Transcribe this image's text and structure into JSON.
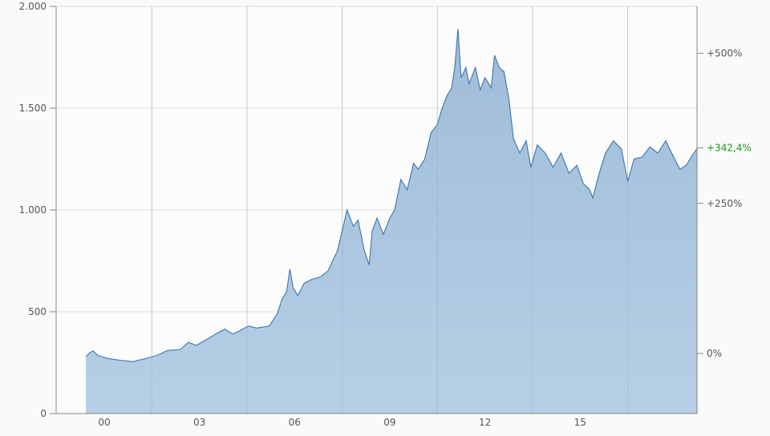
{
  "chart_data": {
    "type": "area",
    "title": "",
    "xlabel": "",
    "ylabel": "",
    "xlim": [
      1999.4,
      2018.7
    ],
    "ylim": [
      0,
      2000
    ],
    "grid": true,
    "x_ticks": [
      {
        "value": 2000,
        "label": "00"
      },
      {
        "value": 2003,
        "label": "03"
      },
      {
        "value": 2006,
        "label": "06"
      },
      {
        "value": 2009,
        "label": "09"
      },
      {
        "value": 2012,
        "label": "12"
      },
      {
        "value": 2015,
        "label": "15"
      }
    ],
    "x_gridlines": [
      2001.5,
      2004.5,
      2007.5,
      2010.5,
      2013.5,
      2016.5
    ],
    "y_ticks": [
      {
        "value": 0,
        "label": "0"
      },
      {
        "value": 500,
        "label": "500"
      },
      {
        "value": 1000,
        "label": "1.000"
      },
      {
        "value": 1500,
        "label": "1.500"
      },
      {
        "value": 2000,
        "label": "2.000"
      }
    ],
    "y2_ticks": [
      {
        "value": 0,
        "label": "0%"
      },
      {
        "value": 250,
        "label": "+250%"
      },
      {
        "value": 500,
        "label": "+500%"
      }
    ],
    "last_change": {
      "value": 342.4,
      "label": "+342,4%"
    },
    "colors": {
      "line": "#3a76b0",
      "fill_top": "#9fbcd8",
      "fill_bottom": "#b6cfe6",
      "last_change": "#1a9a1a",
      "axis": "#888888",
      "grid": "#dddddd",
      "text": "#555555"
    },
    "series": [
      {
        "x": [
          1999.42,
          1999.55,
          1999.65,
          1999.8,
          2000.13,
          2000.5,
          2000.9,
          2001.25,
          2001.65,
          2002.0,
          2002.4,
          2002.65,
          2002.9,
          2003.3,
          2003.55,
          2003.8,
          2004.05,
          2004.3,
          2004.55,
          2004.8,
          2005.2,
          2005.45,
          2005.6,
          2005.75,
          2005.85,
          2005.95,
          2006.1,
          2006.3,
          2006.55,
          2006.8,
          2007.05,
          2007.35,
          2007.55,
          2007.65,
          2007.85,
          2008.0,
          2008.2,
          2008.35,
          2008.45,
          2008.6,
          2008.8,
          2009.0,
          2009.15,
          2009.35,
          2009.55,
          2009.75,
          2009.9,
          2010.1,
          2010.3,
          2010.5,
          2010.65,
          2010.8,
          2010.95,
          2011.05,
          2011.15,
          2011.25,
          2011.4,
          2011.5,
          2011.7,
          2011.85,
          2012.0,
          2012.2,
          2012.3,
          2012.45,
          2012.6,
          2012.75,
          2012.9,
          2013.1,
          2013.3,
          2013.45,
          2013.65,
          2013.9,
          2014.15,
          2014.4,
          2014.65,
          2014.9,
          2015.1,
          2015.3,
          2015.4,
          2015.6,
          2015.8,
          2016.05,
          2016.3,
          2016.5,
          2016.7,
          2016.95,
          2017.2,
          2017.45,
          2017.7,
          2017.95,
          2018.15,
          2018.35,
          2018.5,
          2018.7
        ],
        "y": [
          280,
          300,
          308,
          285,
          270,
          262,
          255,
          268,
          285,
          310,
          315,
          350,
          335,
          370,
          395,
          415,
          390,
          410,
          430,
          420,
          430,
          490,
          560,
          600,
          710,
          620,
          580,
          640,
          660,
          670,
          700,
          800,
          930,
          1000,
          920,
          950,
          800,
          730,
          900,
          960,
          880,
          960,
          1000,
          1150,
          1100,
          1230,
          1200,
          1250,
          1380,
          1420,
          1500,
          1560,
          1600,
          1700,
          1890,
          1650,
          1700,
          1620,
          1700,
          1590,
          1650,
          1600,
          1760,
          1700,
          1680,
          1550,
          1350,
          1280,
          1340,
          1210,
          1320,
          1280,
          1210,
          1280,
          1180,
          1220,
          1130,
          1100,
          1060,
          1180,
          1280,
          1340,
          1300,
          1140,
          1250,
          1260,
          1310,
          1280,
          1340,
          1260,
          1200,
          1220,
          1260,
          1305
        ]
      }
    ]
  }
}
